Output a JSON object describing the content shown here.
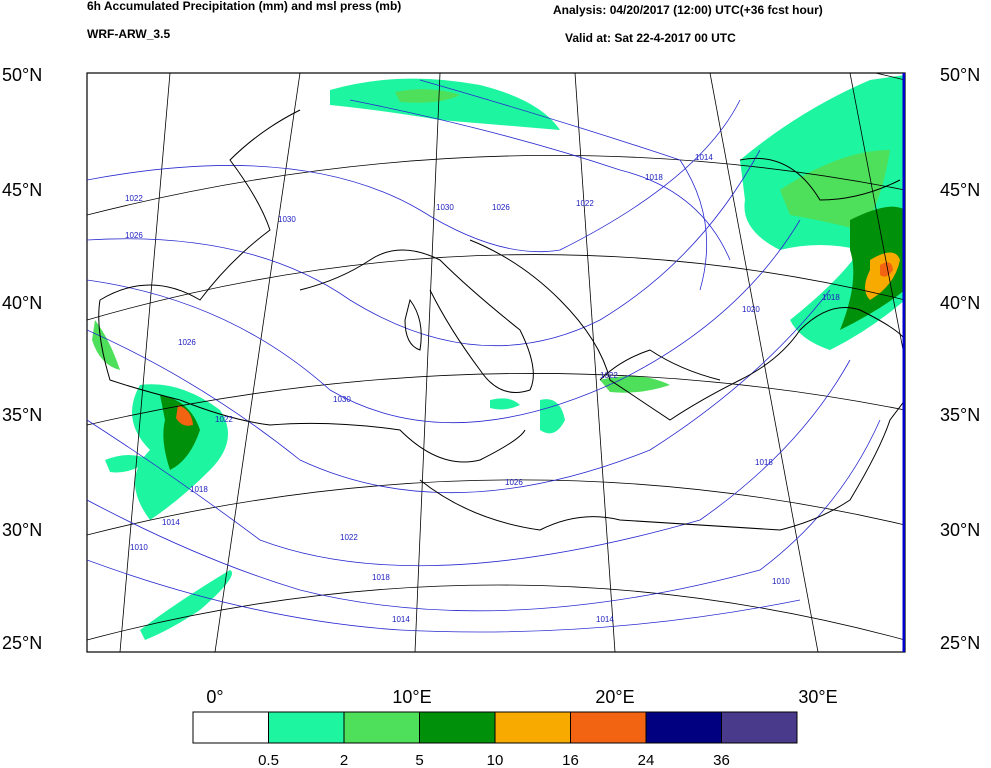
{
  "header": {
    "title": "6h Accumulated Precipitation (mm) and msl press (mb)",
    "model": "WRF-ARW_3.5",
    "analysis": "Analysis: 04/20/2017 (12:00) UTC(+36 fcst hour)",
    "valid": "Valid at: Sat 22-4-2017 00 UTC"
  },
  "map": {
    "lat_labels": [
      "50°N",
      "45°N",
      "40°N",
      "35°N",
      "30°N",
      "25°N"
    ],
    "lon_labels": [
      "0°",
      "10°E",
      "20°E",
      "30°E"
    ],
    "isobar_labels": [
      "1022",
      "1026",
      "1030",
      "1030",
      "1026",
      "1022",
      "1018",
      "1014",
      "1026",
      "1022",
      "1030",
      "1022",
      "1018",
      "1014",
      "1010",
      "1018",
      "1014",
      "1010",
      "1014",
      "1018",
      "1026",
      "1022",
      "1020",
      "1018"
    ]
  },
  "legend": {
    "colors": [
      "#ffffff",
      "#1ef5a0",
      "#4ee05a",
      "#00900a",
      "#f9aa00",
      "#f26312",
      "#000080",
      "#4a3a8c"
    ],
    "labels": [
      "0.5",
      "2",
      "5",
      "10",
      "16",
      "24",
      "36"
    ]
  }
}
